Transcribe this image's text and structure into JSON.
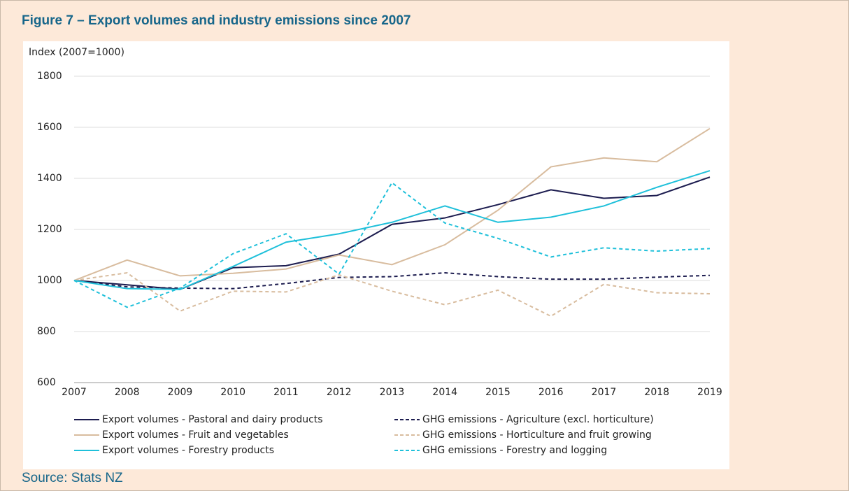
{
  "title": "Figure 7 – Export volumes and industry emissions since 2007",
  "source": "Source: Stats NZ",
  "chart_data": {
    "type": "line",
    "y_axis_label": "Index (2007=1000)",
    "categories": [
      "2007",
      "2008",
      "2009",
      "2010",
      "2011",
      "2012",
      "2013",
      "2014",
      "2015",
      "2016",
      "2017",
      "2018",
      "2019"
    ],
    "ylim": [
      600,
      1800
    ],
    "yticks": [
      600,
      800,
      1000,
      1200,
      1400,
      1600,
      1800
    ],
    "grid": true,
    "series": [
      {
        "name": "Export volumes - Pastoral and dairy products",
        "color": "#1c1c4f",
        "dashed": false,
        "values": [
          1000,
          983,
          965,
          1050,
          1058,
          1103,
          1220,
          1245,
          1297,
          1355,
          1322,
          1333,
          1405
        ]
      },
      {
        "name": "GHG emissions - Agriculture (excl. horticulture)",
        "color": "#1c1c4f",
        "dashed": true,
        "values": [
          1000,
          975,
          970,
          968,
          988,
          1012,
          1015,
          1030,
          1015,
          1005,
          1005,
          1013,
          1020
        ]
      },
      {
        "name": "Export volumes - Fruit and vegetables",
        "color": "#d8bc9e",
        "dashed": false,
        "values": [
          1000,
          1080,
          1018,
          1028,
          1045,
          1100,
          1062,
          1140,
          1275,
          1445,
          1480,
          1465,
          1595
        ]
      },
      {
        "name": "GHG emissions - Horticulture and fruit growing",
        "color": "#d8bc9e",
        "dashed": true,
        "values": [
          1000,
          1030,
          880,
          958,
          955,
          1022,
          958,
          905,
          962,
          860,
          985,
          952,
          948
        ]
      },
      {
        "name": "Export volumes - Forestry products",
        "color": "#1fc0da",
        "dashed": false,
        "values": [
          1000,
          968,
          965,
          1055,
          1150,
          1183,
          1228,
          1292,
          1228,
          1248,
          1292,
          1365,
          1430
        ]
      },
      {
        "name": "GHG emissions - Forestry and logging",
        "color": "#1fc0da",
        "dashed": true,
        "values": [
          1000,
          895,
          970,
          1105,
          1183,
          1025,
          1383,
          1225,
          1165,
          1092,
          1128,
          1115,
          1125
        ]
      }
    ]
  }
}
